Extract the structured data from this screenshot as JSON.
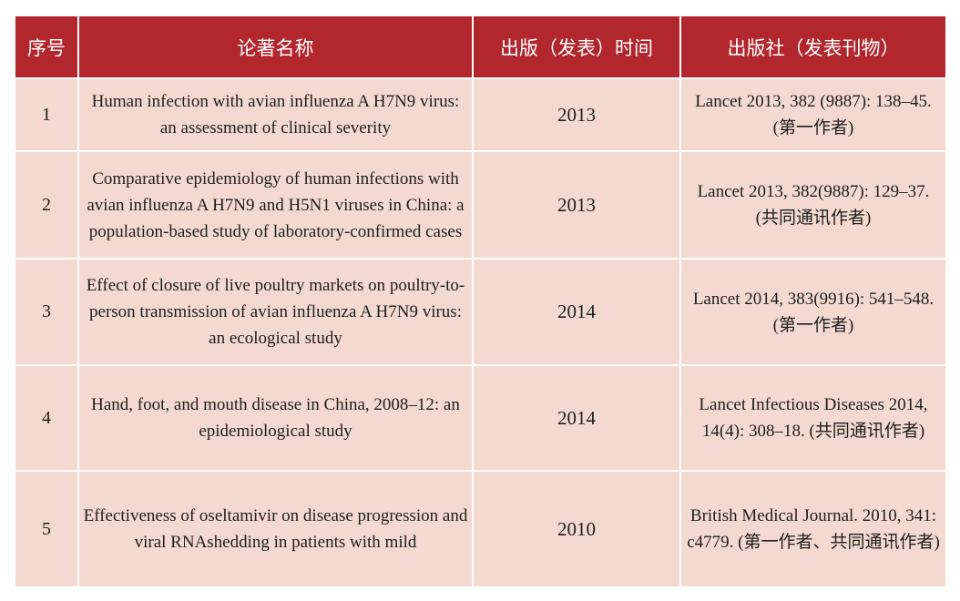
{
  "table": {
    "headers": [
      "序号",
      "论著名称",
      "出版（发表）时间",
      "出版社（发表刊物）"
    ],
    "rows": [
      {
        "no": "1",
        "title": "Human infection with avian influenza A H7N9 virus: an assessment of clinical severity",
        "year": "2013",
        "journal": "Lancet 2013, 382 (9887): 138–45. (第一作者)"
      },
      {
        "no": "2",
        "title": "Comparative epidemiology of human infections with avian influenza A H7N9 and H5N1 viruses in China: a population-based study of laboratory-confirmed cases",
        "year": "2013",
        "journal": "Lancet 2013, 382(9887): 129–37. (共同通讯作者)"
      },
      {
        "no": "3",
        "title": "Effect of closure of live poultry markets on poultry-to-person transmission of avian influenza A H7N9 virus: an ecological study",
        "year": "2014",
        "journal": "Lancet 2014, 383(9916): 541–548. (第一作者)"
      },
      {
        "no": "4",
        "title": "Hand, foot, and mouth disease in China, 2008–12: an epidemiological study",
        "year": "2014",
        "journal": "Lancet Infectious Diseases 2014, 14(4): 308–18. (共同通讯作者)"
      },
      {
        "no": "5",
        "title": "Effectiveness of oseltamivir on disease progression and viral RNAshedding in patients with mild",
        "year": "2010",
        "journal": "British Medical Journal. 2010, 341: c4779. (第一作者、共同通讯作者)"
      }
    ]
  },
  "colors": {
    "header_bg": "#b2272e",
    "row_bg": "#f3d9cf",
    "header_text": "#ffffff"
  }
}
